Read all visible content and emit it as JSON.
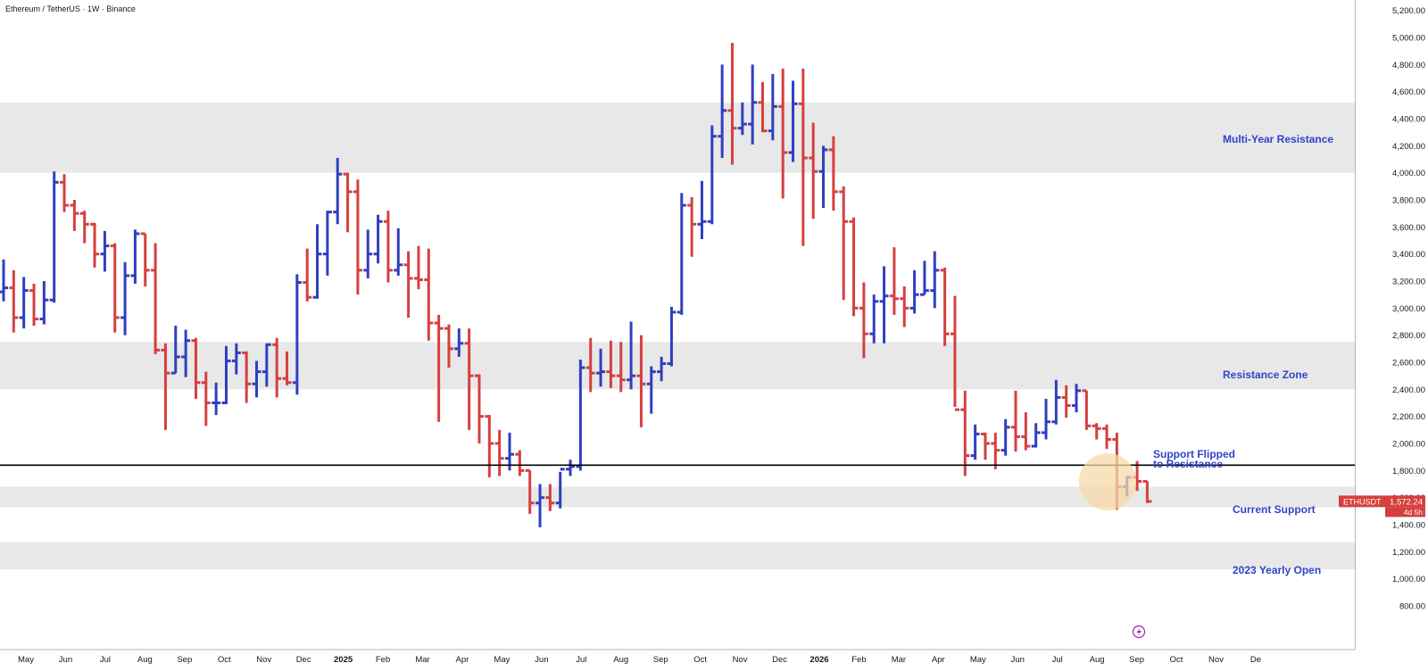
{
  "header": {
    "title": "Ethereum / TetherUS · 1W · Binance"
  },
  "colors": {
    "up": "#2f3fc0",
    "down": "#d63f3f",
    "zone_fill": "#e8e8e8",
    "label_blue": "#2f44c8",
    "support_line": "#000000",
    "highlight": "#f7d9aa",
    "price_tag_bg": "#d63f3f"
  },
  "price_tag": {
    "symbol": "ETHUSDT",
    "price": "1,572.24",
    "countdown": "4d 5h"
  },
  "chart_data": {
    "type": "ohlc",
    "title": "Ethereum / TetherUS · 1W · Binance",
    "interval": "1W",
    "ylim": [
      800,
      5200
    ],
    "y_ticks": [
      "800.00",
      "1,000.00",
      "1,200.00",
      "1,400.00",
      "1,600.00",
      "1,800.00",
      "2,000.00",
      "2,200.00",
      "2,400.00",
      "2,600.00",
      "2,800.00",
      "3,000.00",
      "3,200.00",
      "3,400.00",
      "3,600.00",
      "3,800.00",
      "4,000.00",
      "4,200.00",
      "4,400.00",
      "4,600.00",
      "4,800.00",
      "5,000.00",
      "5,200.00"
    ],
    "x_ticks": [
      "May",
      "Jun",
      "Jul",
      "Aug",
      "Sep",
      "Oct",
      "Nov",
      "Dec",
      "2025",
      "Feb",
      "Mar",
      "Apr",
      "May",
      "Jun",
      "Jul",
      "Aug",
      "Sep",
      "Oct",
      "Nov",
      "Dec",
      "2026",
      "Feb",
      "Mar",
      "Apr",
      "May",
      "Jun",
      "Jul",
      "Aug",
      "Sep",
      "Oct",
      "Nov",
      "De"
    ],
    "zones": [
      {
        "label": "Multi-Year Resistance",
        "low": 4000,
        "high": 4520
      },
      {
        "label": "Resistance Zone",
        "low": 2400,
        "high": 2750
      },
      {
        "label": "Current Support",
        "low": 1530,
        "high": 1680
      },
      {
        "label": "2023 Yearly Open",
        "low": 1070,
        "high": 1270
      }
    ],
    "horizontal_line": {
      "label": "Support Flipped to Resistance",
      "value": 1840
    },
    "last_price": 1572.24,
    "bars": [
      [
        3120,
        3360,
        3050,
        3150
      ],
      [
        3150,
        3280,
        2820,
        2930
      ],
      [
        2930,
        3230,
        2850,
        3130
      ],
      [
        3130,
        3180,
        2870,
        2920
      ],
      [
        2920,
        3200,
        2880,
        3060
      ],
      [
        3060,
        4010,
        3040,
        3930
      ],
      [
        3930,
        3990,
        3710,
        3760
      ],
      [
        3760,
        3800,
        3570,
        3700
      ],
      [
        3700,
        3720,
        3480,
        3620
      ],
      [
        3620,
        3630,
        3300,
        3400
      ],
      [
        3400,
        3570,
        3270,
        3460
      ],
      [
        3460,
        3480,
        2820,
        2930
      ],
      [
        2930,
        3340,
        2800,
        3240
      ],
      [
        3240,
        3580,
        3180,
        3550
      ],
      [
        3550,
        3550,
        3160,
        3280
      ],
      [
        3280,
        3480,
        2660,
        2690
      ],
      [
        2690,
        2740,
        2100,
        2520
      ],
      [
        2520,
        2870,
        2520,
        2640
      ],
      [
        2640,
        2840,
        2490,
        2760
      ],
      [
        2760,
        2780,
        2330,
        2450
      ],
      [
        2450,
        2530,
        2130,
        2300
      ],
      [
        2300,
        2450,
        2210,
        2300
      ],
      [
        2300,
        2720,
        2290,
        2610
      ],
      [
        2610,
        2740,
        2510,
        2670
      ],
      [
        2670,
        2680,
        2300,
        2440
      ],
      [
        2440,
        2610,
        2340,
        2530
      ],
      [
        2530,
        2740,
        2420,
        2730
      ],
      [
        2730,
        2780,
        2340,
        2480
      ],
      [
        2480,
        2680,
        2430,
        2450
      ],
      [
        2450,
        3250,
        2360,
        3190
      ],
      [
        3190,
        3440,
        3050,
        3080
      ],
      [
        3080,
        3620,
        3070,
        3400
      ],
      [
        3400,
        3720,
        3240,
        3710
      ],
      [
        3710,
        4110,
        3620,
        3990
      ],
      [
        3990,
        4000,
        3560,
        3860
      ],
      [
        3860,
        3950,
        3100,
        3280
      ],
      [
        3280,
        3580,
        3220,
        3400
      ],
      [
        3400,
        3690,
        3330,
        3640
      ],
      [
        3640,
        3720,
        3190,
        3280
      ],
      [
        3280,
        3590,
        3240,
        3320
      ],
      [
        3320,
        3420,
        2930,
        3220
      ],
      [
        3220,
        3460,
        3140,
        3210
      ],
      [
        3210,
        3440,
        2760,
        2890
      ],
      [
        2890,
        2950,
        2160,
        2850
      ],
      [
        2850,
        2880,
        2560,
        2700
      ],
      [
        2700,
        2850,
        2640,
        2740
      ],
      [
        2740,
        2850,
        2100,
        2500
      ],
      [
        2500,
        2510,
        2000,
        2200
      ],
      [
        2200,
        2210,
        1750,
        2000
      ],
      [
        2000,
        2100,
        1760,
        1890
      ],
      [
        1890,
        2080,
        1800,
        1920
      ],
      [
        1920,
        1950,
        1760,
        1800
      ],
      [
        1800,
        1800,
        1480,
        1560
      ],
      [
        1560,
        1700,
        1380,
        1600
      ],
      [
        1600,
        1700,
        1500,
        1560
      ],
      [
        1560,
        1790,
        1520,
        1810
      ],
      [
        1810,
        1880,
        1760,
        1830
      ],
      [
        1830,
        2620,
        1800,
        2560
      ],
      [
        2560,
        2780,
        2380,
        2520
      ],
      [
        2520,
        2700,
        2420,
        2530
      ],
      [
        2530,
        2760,
        2410,
        2500
      ],
      [
        2500,
        2750,
        2380,
        2470
      ],
      [
        2470,
        2900,
        2400,
        2500
      ],
      [
        2500,
        2800,
        2120,
        2440
      ],
      [
        2440,
        2570,
        2220,
        2530
      ],
      [
        2530,
        2640,
        2460,
        2590
      ],
      [
        2590,
        3010,
        2570,
        2970
      ],
      [
        2970,
        3850,
        2950,
        3760
      ],
      [
        3760,
        3820,
        3380,
        3620
      ],
      [
        3620,
        3940,
        3510,
        3640
      ],
      [
        3640,
        4350,
        3620,
        4270
      ],
      [
        4270,
        4800,
        4110,
        4460
      ],
      [
        4460,
        4960,
        4060,
        4330
      ],
      [
        4330,
        4520,
        4280,
        4360
      ],
      [
        4360,
        4800,
        4210,
        4520
      ],
      [
        4520,
        4670,
        4300,
        4310
      ],
      [
        4310,
        4730,
        4240,
        4490
      ],
      [
        4490,
        4770,
        3810,
        4150
      ],
      [
        4150,
        4680,
        4080,
        4510
      ],
      [
        4510,
        4770,
        3460,
        4110
      ],
      [
        4110,
        4370,
        3660,
        4010
      ],
      [
        4010,
        4200,
        3740,
        4170
      ],
      [
        4170,
        4270,
        3720,
        3860
      ],
      [
        3860,
        3900,
        3060,
        3640
      ],
      [
        3640,
        3670,
        2940,
        3000
      ],
      [
        3000,
        3190,
        2630,
        2810
      ],
      [
        2810,
        3100,
        2740,
        3050
      ],
      [
        3050,
        3310,
        2740,
        3090
      ],
      [
        3090,
        3450,
        2950,
        3070
      ],
      [
        3070,
        3160,
        2860,
        3000
      ],
      [
        3000,
        3280,
        2960,
        3100
      ],
      [
        3100,
        3350,
        3100,
        3130
      ],
      [
        3130,
        3420,
        3000,
        3280
      ],
      [
        3280,
        3300,
        2720,
        2810
      ],
      [
        2810,
        3090,
        2270,
        2250
      ],
      [
        2250,
        2390,
        1760,
        1910
      ],
      [
        1910,
        2140,
        1880,
        2070
      ],
      [
        2070,
        2080,
        1880,
        2000
      ],
      [
        2000,
        2080,
        1810,
        1950
      ],
      [
        1950,
        2180,
        1910,
        2120
      ],
      [
        2120,
        2390,
        1940,
        2050
      ],
      [
        2050,
        2230,
        1950,
        1980
      ],
      [
        1980,
        2150,
        1970,
        2080
      ],
      [
        2080,
        2330,
        2030,
        2160
      ],
      [
        2160,
        2470,
        2140,
        2340
      ],
      [
        2340,
        2430,
        2190,
        2280
      ],
      [
        2280,
        2440,
        2230,
        2390
      ],
      [
        2390,
        2390,
        2100,
        2130
      ],
      [
        2130,
        2150,
        2030,
        2110
      ],
      [
        2110,
        2140,
        1960,
        2030
      ],
      [
        2030,
        2080,
        1510,
        1680
      ],
      [
        1680,
        1760,
        1610,
        1750
      ],
      [
        1750,
        1870,
        1650,
        1720
      ],
      [
        1720,
        1720,
        1560,
        1572
      ]
    ]
  },
  "annotations": {
    "multi_year_resistance": "Multi-Year Resistance",
    "resistance_zone": "Resistance Zone",
    "support_flipped_line1": "Support Flipped",
    "support_flipped_line2": "to Resistance",
    "current_support": "Current Support",
    "yearly_open": "2023 Yearly Open"
  }
}
